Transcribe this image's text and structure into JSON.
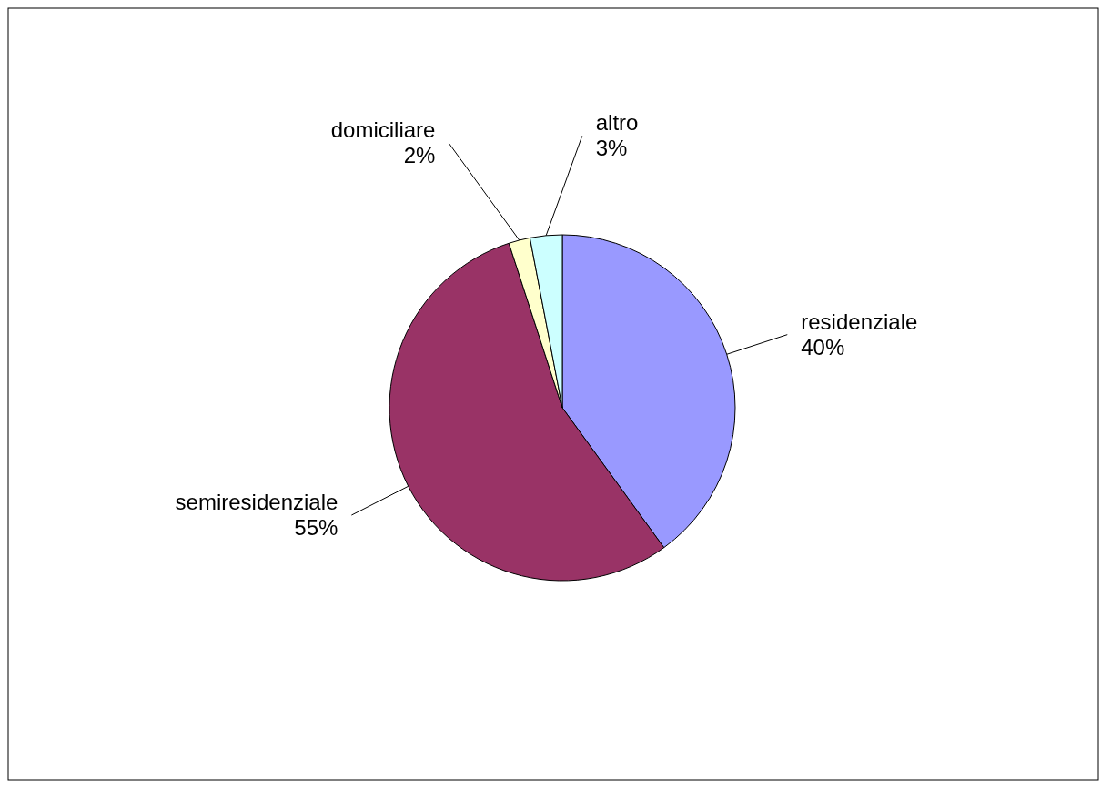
{
  "chart_data": {
    "type": "pie",
    "categories": [
      "residenziale",
      "semiresidenziale",
      "domiciliare",
      "altro"
    ],
    "values": [
      40,
      55,
      2,
      3
    ],
    "colors": [
      "#9999ff",
      "#993366",
      "#ffffcc",
      "#ccffff"
    ],
    "value_labels": [
      "40%",
      "55%",
      "2%",
      "3%"
    ]
  }
}
